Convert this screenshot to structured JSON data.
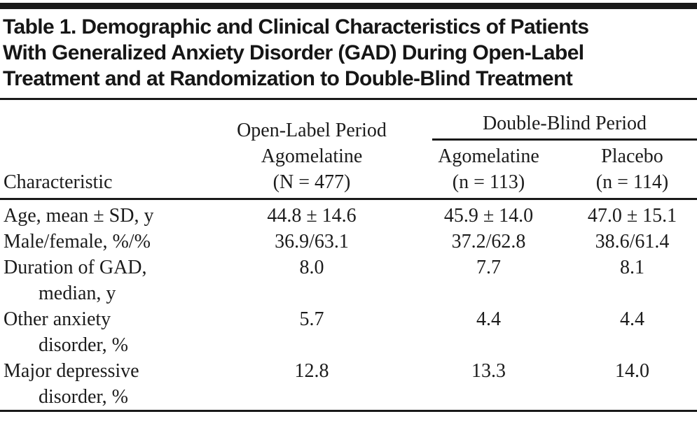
{
  "title": {
    "lines": [
      "Table 1. Demographic and Clinical Characteristics of Patients",
      "With Generalized Anxiety Disorder (GAD) During Open-Label",
      "Treatment and at Randomization to Double-Blind Treatment"
    ]
  },
  "header": {
    "characteristic": "Characteristic",
    "open_label": {
      "lines": [
        "Open-Label Period",
        "Agomelatine",
        "(N = 477)"
      ]
    },
    "double_blind": {
      "label": "Double-Blind Period",
      "columns": [
        {
          "name": "Agomelatine",
          "n": "(n = 113)"
        },
        {
          "name": "Placebo",
          "n": "(n = 114)"
        }
      ]
    }
  },
  "rows": [
    {
      "label1": "Age, mean ± SD, y",
      "label2": "",
      "open_label": "44.8 ± 14.6",
      "db_agomelatine": "45.9 ± 14.0",
      "db_placebo": "47.0 ± 15.1"
    },
    {
      "label1": "Male/female, %/%",
      "label2": "",
      "open_label": "36.9/63.1",
      "db_agomelatine": "37.2/62.8",
      "db_placebo": "38.6/61.4"
    },
    {
      "label1": "Duration of GAD,",
      "label2": "median, y",
      "open_label": "8.0",
      "db_agomelatine": "7.7",
      "db_placebo": "8.1"
    },
    {
      "label1": "Other anxiety",
      "label2": "disorder, %",
      "open_label": "5.7",
      "db_agomelatine": "4.4",
      "db_placebo": "4.4"
    },
    {
      "label1": "Major depressive",
      "label2": "disorder, %",
      "open_label": "12.8",
      "db_agomelatine": "13.3",
      "db_placebo": "14.0"
    }
  ],
  "colors": {
    "text": "#1c1c1c",
    "rule": "#191919",
    "background": "#ffffff"
  }
}
